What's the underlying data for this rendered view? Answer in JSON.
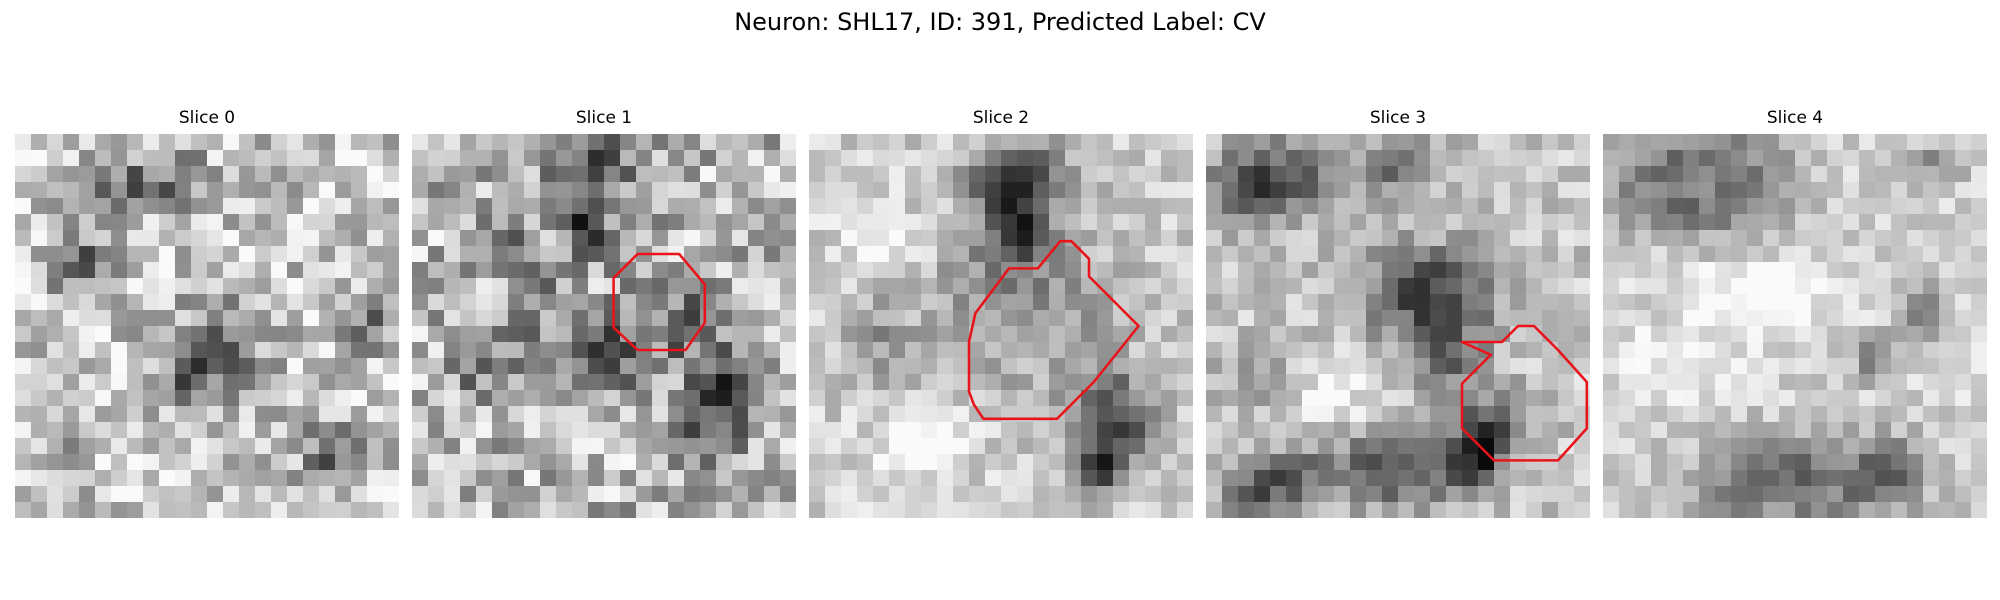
{
  "figure": {
    "title": "Neuron: SHL17, ID: 391, Predicted Label: CV",
    "slices": [
      {
        "title": "Slice 0",
        "roi": []
      },
      {
        "title": "Slice 1",
        "roi": [
          [
            14.1,
            7.5
          ],
          [
            16.7,
            7.5
          ],
          [
            18.3,
            9.4
          ],
          [
            18.3,
            11.8
          ],
          [
            17.1,
            13.5
          ],
          [
            14.1,
            13.5
          ],
          [
            12.6,
            12.1
          ],
          [
            12.6,
            9.0
          ]
        ]
      },
      {
        "title": "Slice 2",
        "roi": [
          [
            12.5,
            8.4
          ],
          [
            14.3,
            8.4
          ],
          [
            15.7,
            6.7
          ],
          [
            16.4,
            6.7
          ],
          [
            17.5,
            7.8
          ],
          [
            17.5,
            8.9
          ],
          [
            18.5,
            9.9
          ],
          [
            20.6,
            12.0
          ],
          [
            17.8,
            15.5
          ],
          [
            15.5,
            17.8
          ],
          [
            10.9,
            17.8
          ],
          [
            10.3,
            16.9
          ],
          [
            10.0,
            16.1
          ],
          [
            10.0,
            13.0
          ],
          [
            10.4,
            11.2
          ]
        ]
      },
      {
        "title": "Slice 3",
        "roi": [
          [
            16.0,
            13.0
          ],
          [
            18.5,
            13.0
          ],
          [
            19.5,
            12.0
          ],
          [
            20.5,
            12.0
          ],
          [
            22.0,
            13.5
          ],
          [
            23.8,
            15.5
          ],
          [
            23.8,
            18.4
          ],
          [
            22.0,
            20.4
          ],
          [
            18.0,
            20.4
          ],
          [
            16.0,
            18.4
          ],
          [
            16.0,
            15.6
          ],
          [
            17.8,
            13.8
          ]
        ]
      },
      {
        "title": "Slice 4",
        "roi": []
      }
    ],
    "roi_color": "#e8141a"
  }
}
